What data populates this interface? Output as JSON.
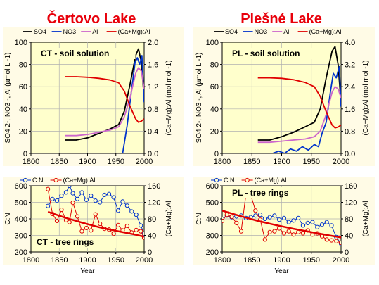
{
  "chart_data": [
    {
      "type": "line",
      "panel": "certovo-soil",
      "title": "Čertovo Lake",
      "annotation": "CT - soil solution",
      "xlim": [
        1800,
        2000
      ],
      "xticks": [
        "1800",
        "1850",
        "1900",
        "1950",
        "2000"
      ],
      "ylim": [
        0,
        100
      ],
      "yticks": [
        "0",
        "20",
        "40",
        "60",
        "80",
        "100"
      ],
      "y2lim": [
        0,
        2.0
      ],
      "y2ticks": [
        "0.0",
        "0.4",
        "0.8",
        "1.2",
        "1.6",
        "2.0"
      ],
      "ylabel": "SO4 2-, NO3 -, Al (µmol L -1)",
      "y2label": "(Ca+Mg):Al (mol mol -1)",
      "series": [
        {
          "name": "SO4",
          "color": "#000000",
          "axis": "left",
          "x": [
            1860,
            1880,
            1900,
            1920,
            1940,
            1955,
            1965,
            1975,
            1985,
            1990,
            1995,
            2000
          ],
          "y": [
            12,
            12,
            14,
            18,
            22,
            26,
            38,
            62,
            88,
            94,
            82,
            50
          ]
        },
        {
          "name": "NO3",
          "color": "#0033cc",
          "axis": "left",
          "x": [
            1860,
            1950,
            1962,
            1970,
            1978,
            1984,
            1988,
            1992,
            1996,
            2000
          ],
          "y": [
            0,
            0,
            0,
            25,
            58,
            82,
            86,
            80,
            88,
            46
          ]
        },
        {
          "name": "Al",
          "color": "#cc66cc",
          "axis": "left",
          "x": [
            1860,
            1880,
            1900,
            1920,
            1940,
            1955,
            1965,
            1975,
            1985,
            1990,
            1995,
            2000
          ],
          "y": [
            16,
            16,
            17,
            19,
            21,
            24,
            33,
            50,
            72,
            77,
            74,
            58
          ]
        },
        {
          "name": "(Ca+Mg):Al",
          "color": "#e00000",
          "axis": "right",
          "x": [
            1860,
            1880,
            1900,
            1920,
            1940,
            1955,
            1965,
            1975,
            1985,
            1990,
            1995,
            2000
          ],
          "y": [
            1.38,
            1.38,
            1.37,
            1.35,
            1.32,
            1.27,
            1.12,
            0.85,
            0.62,
            0.56,
            0.58,
            0.62
          ]
        }
      ]
    },
    {
      "type": "line",
      "panel": "plesne-soil",
      "title": "Plešné Lake",
      "annotation": "PL - soil solution",
      "xlim": [
        1800,
        2000
      ],
      "xticks": [
        "1800",
        "1850",
        "1900",
        "1950",
        "2000"
      ],
      "ylim": [
        0,
        100
      ],
      "yticks": [
        "0",
        "20",
        "40",
        "60",
        "80",
        "100"
      ],
      "y2lim": [
        0,
        4.0
      ],
      "y2ticks": [
        "0.0",
        "0.8",
        "1.6",
        "2.4",
        "3.2",
        "4.0"
      ],
      "ylabel": "SO4 2-, NO3 -, Al (µmol L -1)",
      "y2label": "(Ca+Mg):Al (mol mol -1)",
      "series": [
        {
          "name": "SO4",
          "color": "#000000",
          "axis": "left",
          "x": [
            1860,
            1880,
            1900,
            1920,
            1940,
            1955,
            1965,
            1975,
            1985,
            1990,
            1995,
            2000
          ],
          "y": [
            12,
            12,
            15,
            19,
            24,
            28,
            40,
            68,
            92,
            96,
            80,
            45
          ]
        },
        {
          "name": "NO3",
          "color": "#0033cc",
          "axis": "left",
          "x": [
            1860,
            1885,
            1895,
            1905,
            1915,
            1925,
            1935,
            1945,
            1955,
            1962,
            1968,
            1975,
            1982,
            1987,
            1992,
            1997,
            2000
          ],
          "y": [
            0,
            0,
            2,
            0,
            4,
            2,
            6,
            3,
            8,
            6,
            18,
            28,
            55,
            72,
            68,
            78,
            42
          ]
        },
        {
          "name": "Al",
          "color": "#cc66cc",
          "axis": "left",
          "x": [
            1860,
            1880,
            1900,
            1920,
            1940,
            1955,
            1965,
            1975,
            1985,
            1990,
            1995,
            2000
          ],
          "y": [
            10,
            10,
            11,
            12,
            13,
            15,
            20,
            35,
            55,
            60,
            58,
            50
          ]
        },
        {
          "name": "(Ca+Mg):Al",
          "color": "#e00000",
          "axis": "right",
          "x": [
            1860,
            1880,
            1900,
            1920,
            1940,
            1955,
            1965,
            1975,
            1985,
            1990,
            1995,
            2000
          ],
          "y": [
            2.72,
            2.72,
            2.7,
            2.65,
            2.55,
            2.4,
            2.05,
            1.5,
            1.02,
            0.92,
            0.95,
            1.02
          ]
        }
      ]
    },
    {
      "type": "line",
      "panel": "certovo-rings",
      "annotation": "CT - tree rings",
      "xlim": [
        1800,
        2000
      ],
      "xticks": [
        "1800",
        "1850",
        "1900",
        "1950",
        "2000"
      ],
      "ylim": [
        200,
        600
      ],
      "yticks": [
        "200",
        "300",
        "400",
        "500",
        "600"
      ],
      "y2lim": [
        0,
        160
      ],
      "y2ticks": [
        "0",
        "40",
        "80",
        "120",
        "160"
      ],
      "xlabel": "Year",
      "ylabel": "C:N",
      "y2label": "(Ca+Mg):Al",
      "series": [
        {
          "name": "C:N",
          "color": "#0033cc",
          "axis": "left",
          "markers": true,
          "x": [
            1830,
            1838,
            1846,
            1854,
            1862,
            1868,
            1874,
            1882,
            1890,
            1898,
            1906,
            1914,
            1922,
            1930,
            1938,
            1946,
            1954,
            1962,
            1970,
            1978,
            1986,
            1994,
            2000
          ],
          "y": [
            478,
            520,
            510,
            540,
            560,
            600,
            555,
            520,
            560,
            515,
            540,
            510,
            500,
            545,
            550,
            530,
            450,
            505,
            480,
            445,
            425,
            360,
            310
          ]
        },
        {
          "name": "(Ca+Mg):Al",
          "color": "#e00000",
          "axis": "right",
          "markers": true,
          "x": [
            1830,
            1838,
            1846,
            1854,
            1862,
            1868,
            1874,
            1882,
            1890,
            1898,
            1906,
            1914,
            1922,
            1930,
            1938,
            1946,
            1954,
            1962,
            1970,
            1978,
            1986,
            1994,
            2000
          ],
          "y": [
            152,
            92,
            75,
            102,
            77,
            72,
            119,
            86,
            50,
            58,
            52,
            91,
            68,
            56,
            54,
            44,
            65,
            52,
            63,
            47,
            53,
            50,
            34
          ]
        },
        {
          "name": "(Ca+Mg):Al trend",
          "color": "#e00000",
          "axis": "right",
          "x": [
            1830,
            1860,
            1890,
            1920,
            1950,
            1980,
            2000
          ],
          "y": [
            97,
            83,
            71,
            60,
            51,
            43,
            37
          ]
        }
      ]
    },
    {
      "type": "line",
      "panel": "plesne-rings",
      "annotation": "PL - tree rings",
      "xlim": [
        1800,
        2000
      ],
      "xticks": [
        "1800",
        "1850",
        "1900",
        "1950",
        "2000"
      ],
      "ylim": [
        200,
        600
      ],
      "yticks": [
        "200",
        "300",
        "400",
        "500",
        "600"
      ],
      "y2lim": [
        0,
        160
      ],
      "y2ticks": [
        "0",
        "40",
        "80",
        "120",
        "160"
      ],
      "xlabel": "Year",
      "ylabel": "C:N",
      "y2label": "(Ca+Mg):Al",
      "series": [
        {
          "name": "C:N",
          "color": "#0033cc",
          "axis": "left",
          "markers": true,
          "x": [
            1800,
            1808,
            1816,
            1824,
            1832,
            1840,
            1848,
            1856,
            1864,
            1872,
            1880,
            1888,
            1896,
            1904,
            1912,
            1920,
            1928,
            1936,
            1944,
            1952,
            1960,
            1968,
            1976,
            1984,
            1992,
            2000
          ],
          "y": [
            400,
            420,
            410,
            415,
            420,
            405,
            410,
            420,
            425,
            400,
            410,
            420,
            395,
            405,
            380,
            390,
            405,
            360,
            375,
            380,
            350,
            365,
            380,
            360,
            290,
            250
          ]
        },
        {
          "name": "(Ca+Mg):Al",
          "color": "#e00000",
          "axis": "right",
          "markers": true,
          "x": [
            1800,
            1808,
            1816,
            1824,
            1832,
            1840,
            1848,
            1856,
            1864,
            1872,
            1880,
            1888,
            1896,
            1904,
            1912,
            1920,
            1928,
            1936,
            1944,
            1952,
            1960,
            1968,
            1976,
            1984,
            1992,
            2000
          ],
          "y": [
            75,
            90,
            85,
            70,
            50,
            140,
            138,
            100,
            78,
            30,
            48,
            50,
            57,
            45,
            50,
            42,
            48,
            45,
            52,
            42,
            45,
            38,
            30,
            28,
            26,
            22
          ]
        },
        {
          "name": "(Ca+Mg):Al trend",
          "color": "#e00000",
          "axis": "right",
          "x": [
            1800,
            1830,
            1860,
            1890,
            1920,
            1950,
            1980,
            2000
          ],
          "y": [
            100,
            87,
            75,
            65,
            56,
            48,
            40,
            35
          ]
        }
      ]
    }
  ]
}
